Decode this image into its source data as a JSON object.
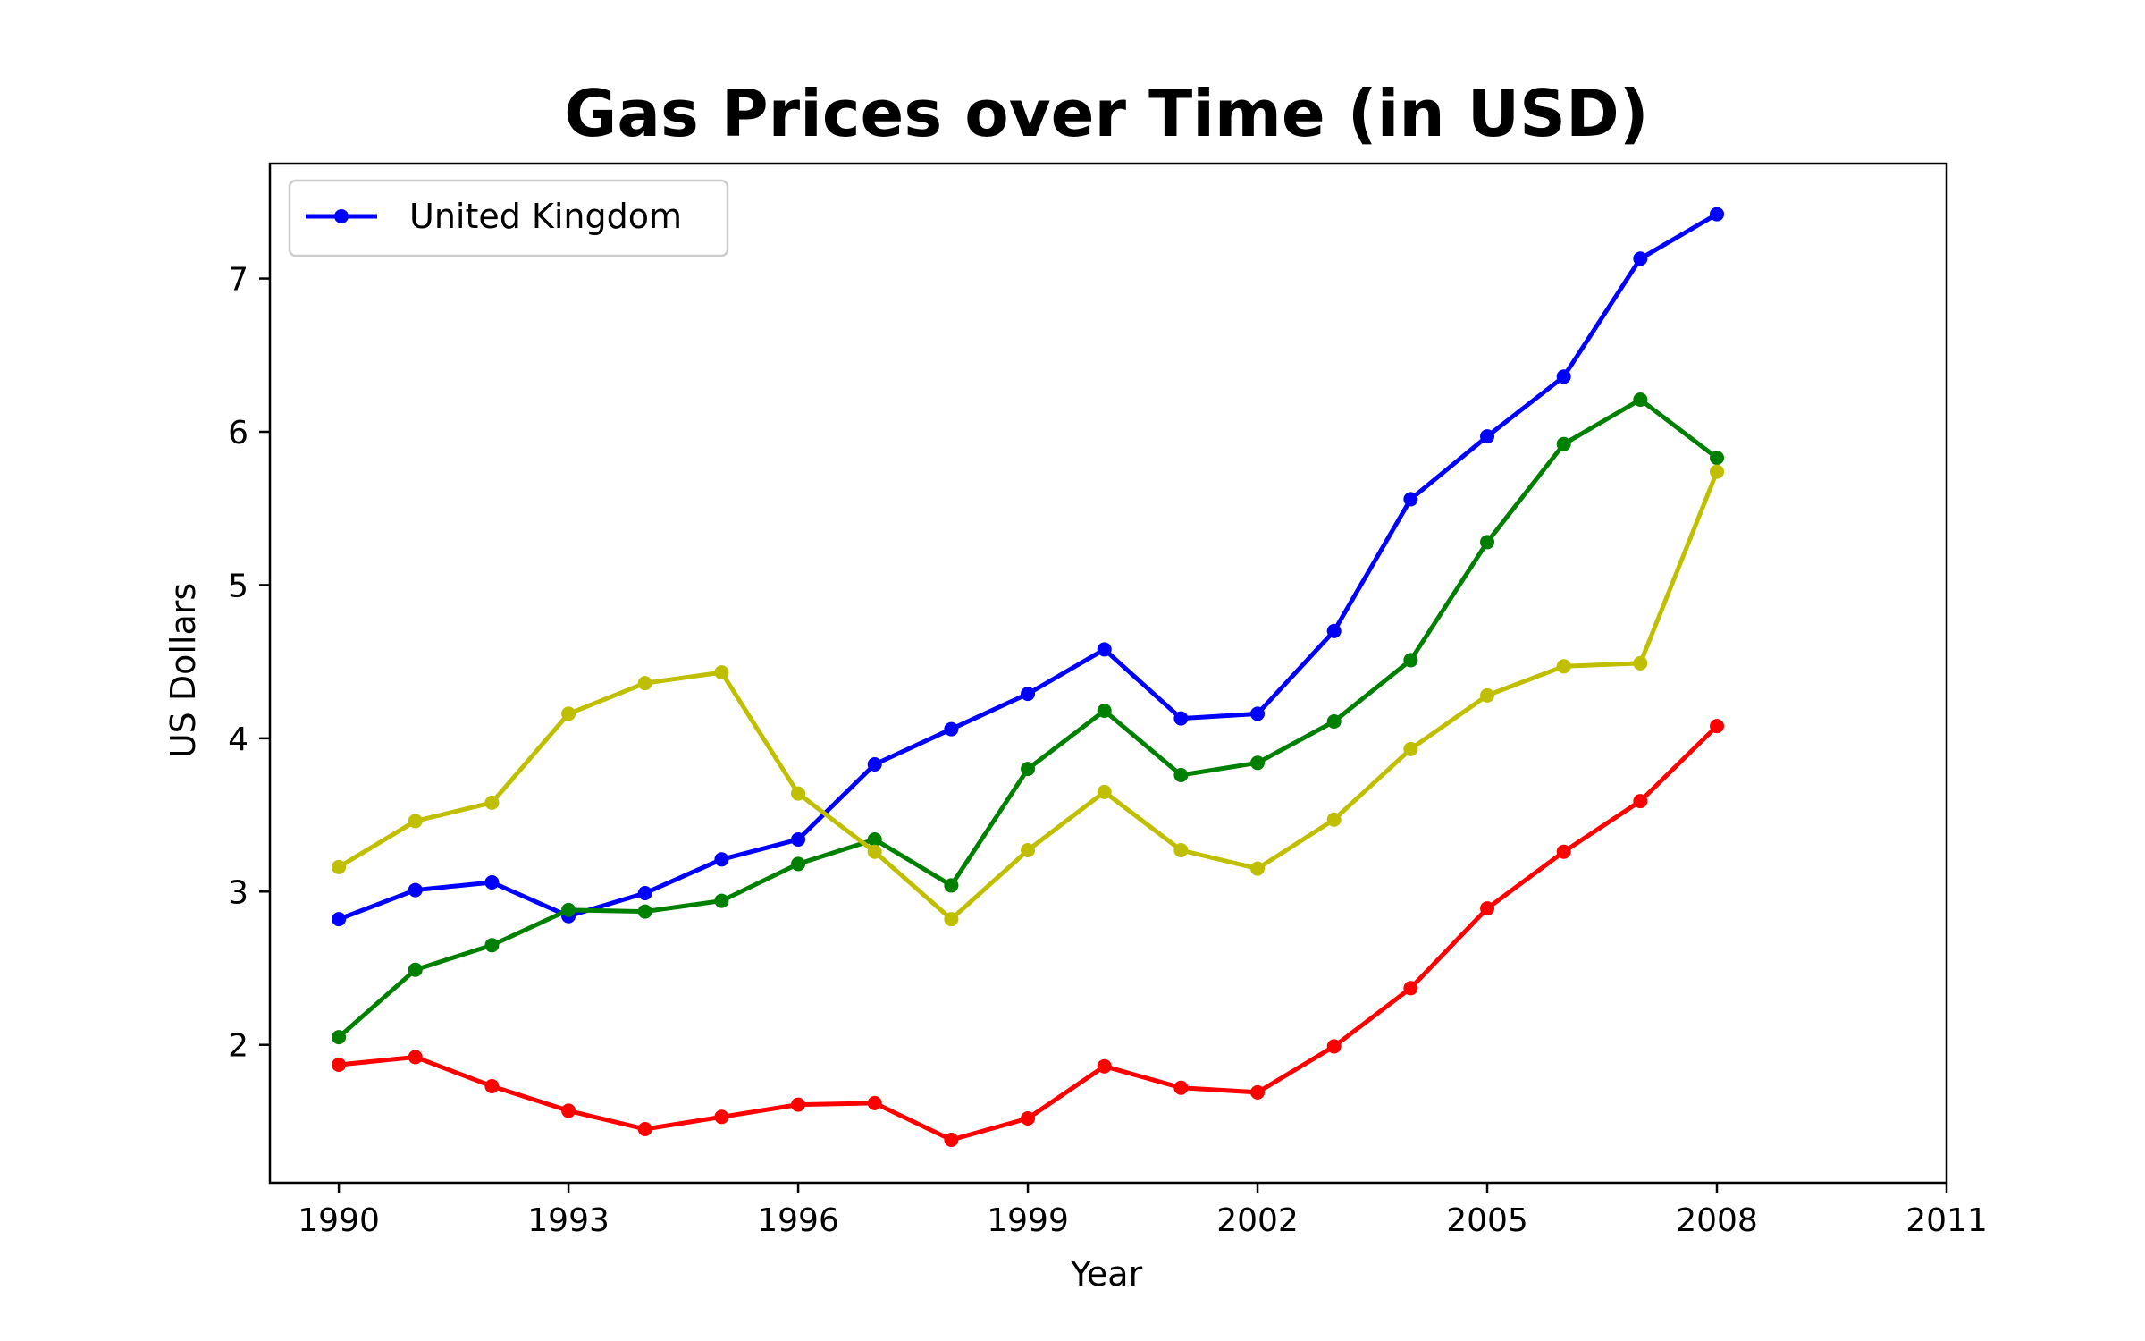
{
  "chart_data": {
    "type": "line",
    "title": "Gas Prices over Time (in USD)",
    "xlabel": "Year",
    "ylabel": "US Dollars",
    "xlim": [
      1989.1,
      2011
    ],
    "ylim": [
      1.1,
      7.75
    ],
    "x_ticks": [
      1990,
      1993,
      1996,
      1999,
      2002,
      2005,
      2008,
      2011
    ],
    "y_ticks": [
      2,
      3,
      4,
      5,
      6,
      7
    ],
    "x": [
      1990,
      1991,
      1992,
      1993,
      1994,
      1995,
      1996,
      1997,
      1998,
      1999,
      2000,
      2001,
      2002,
      2003,
      2004,
      2005,
      2006,
      2007,
      2008
    ],
    "grid": false,
    "legend_position": "top-left",
    "series": [
      {
        "name": "United Kingdom",
        "color": "#0000ff",
        "marker": "circle",
        "values": [
          2.82,
          3.01,
          3.06,
          2.84,
          2.99,
          3.21,
          3.34,
          3.83,
          4.06,
          4.29,
          4.58,
          4.13,
          4.16,
          4.7,
          5.56,
          5.97,
          6.36,
          7.13,
          7.42
        ]
      },
      {
        "color": "#008000",
        "marker": "circle",
        "values": [
          2.05,
          2.49,
          2.65,
          2.88,
          2.87,
          2.94,
          3.18,
          3.34,
          3.04,
          3.8,
          4.18,
          3.76,
          3.84,
          4.11,
          4.51,
          5.28,
          5.92,
          6.21,
          5.83
        ]
      },
      {
        "color": "#bfbf00",
        "marker": "circle",
        "values": [
          3.16,
          3.46,
          3.58,
          4.16,
          4.36,
          4.43,
          3.64,
          3.26,
          2.82,
          3.27,
          3.65,
          3.27,
          3.15,
          3.47,
          3.93,
          4.28,
          4.47,
          4.49,
          5.74
        ]
      },
      {
        "color": "#ff0000",
        "marker": "circle",
        "values": [
          1.87,
          1.92,
          1.73,
          1.57,
          1.45,
          1.53,
          1.61,
          1.62,
          1.38,
          1.52,
          1.86,
          1.72,
          1.69,
          1.99,
          2.37,
          2.89,
          3.26,
          3.59,
          4.08
        ]
      }
    ]
  }
}
